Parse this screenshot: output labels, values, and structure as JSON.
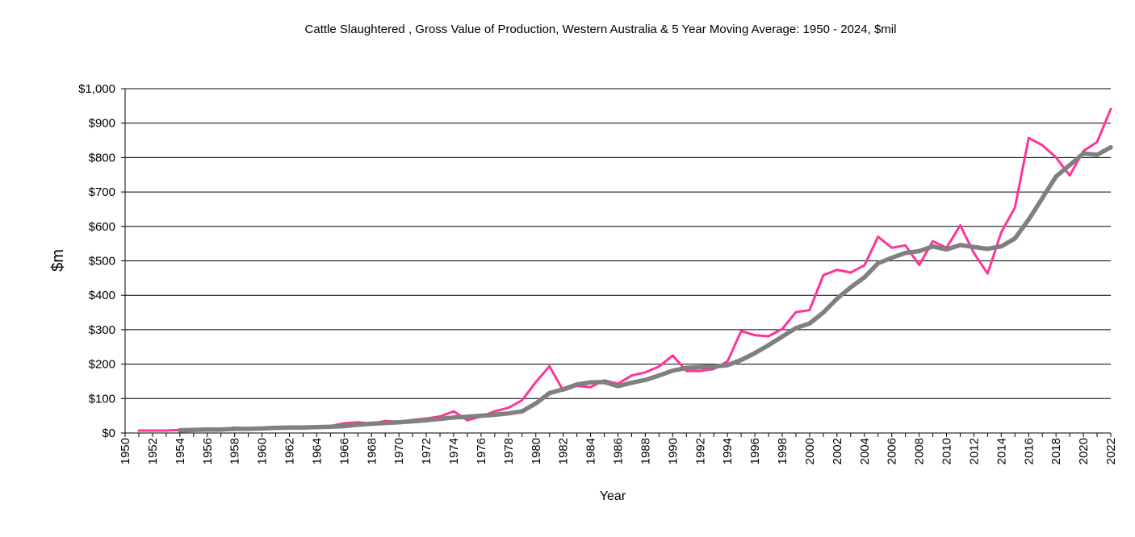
{
  "chart_data": {
    "type": "line",
    "title": "Cattle Slaughtered , Gross Value of Production,  Western  Australia & 5 Year Moving Average: 1950 - 2024, $mil",
    "xlabel": "Year",
    "ylabel": "$m",
    "ylim": [
      0,
      1000
    ],
    "yticks": [
      0,
      100,
      200,
      300,
      400,
      500,
      600,
      700,
      800,
      900,
      1000
    ],
    "ytick_labels": [
      "$0",
      "$100",
      "$200",
      "$300",
      "$400",
      "$500",
      "$600",
      "$700",
      "$800",
      "$900",
      "$1,000"
    ],
    "xlim": [
      1950,
      2022
    ],
    "xtick_labels": [
      "1950",
      "1952",
      "1954",
      "1956",
      "1958",
      "1960",
      "1962",
      "1964",
      "1966",
      "1968",
      "1970",
      "1972",
      "1974",
      "1976",
      "1978",
      "1980",
      "1982",
      "1984",
      "1986",
      "1988",
      "1990",
      "1992",
      "1994",
      "1996",
      "1998",
      "2000",
      "2002",
      "2004",
      "2006",
      "2008",
      "2010",
      "2012",
      "2014",
      "2016",
      "2018",
      "2020",
      "2022"
    ],
    "grid": true,
    "legend": "none",
    "series": [
      {
        "color": "#ff3399",
        "x": [
          1951,
          1952,
          1953,
          1954,
          1955,
          1956,
          1957,
          1958,
          1959,
          1960,
          1961,
          1962,
          1963,
          1964,
          1965,
          1966,
          1967,
          1968,
          1969,
          1970,
          1971,
          1972,
          1973,
          1974,
          1975,
          1976,
          1977,
          1978,
          1979,
          1980,
          1981,
          1982,
          1983,
          1984,
          1985,
          1986,
          1987,
          1988,
          1989,
          1990,
          1991,
          1992,
          1993,
          1994,
          1995,
          1996,
          1997,
          1998,
          1999,
          2000,
          2001,
          2002,
          2003,
          2004,
          2005,
          2006,
          2007,
          2008,
          2009,
          2010,
          2011,
          2012,
          2013,
          2014,
          2015,
          2016,
          2017,
          2018,
          2019,
          2020,
          2021,
          2022
        ],
        "values": [
          7,
          7,
          7,
          9,
          10,
          10,
          10,
          16,
          12,
          14,
          17,
          17,
          17,
          17,
          20,
          28,
          31,
          27,
          35,
          32,
          38,
          42,
          48,
          63,
          37,
          48,
          63,
          73,
          95,
          148,
          194,
          123,
          137,
          133,
          153,
          143,
          167,
          176,
          193,
          225,
          180,
          180,
          186,
          208,
          296,
          284,
          281,
          302,
          351,
          357,
          458,
          474,
          466,
          487,
          570,
          538,
          545,
          488,
          557,
          538,
          603,
          523,
          463,
          583,
          655,
          857,
          836,
          800,
          748,
          819,
          845,
          941
        ]
      },
      {
        "color": "#808080",
        "x": [
          1954,
          1955,
          1956,
          1957,
          1958,
          1959,
          1960,
          1961,
          1962,
          1963,
          1964,
          1965,
          1966,
          1967,
          1968,
          1969,
          1970,
          1971,
          1972,
          1973,
          1974,
          1975,
          1976,
          1977,
          1978,
          1979,
          1980,
          1981,
          1982,
          1983,
          1984,
          1985,
          1986,
          1987,
          1988,
          1989,
          1990,
          1991,
          1992,
          1993,
          1994,
          1995,
          1996,
          1997,
          1998,
          1999,
          2000,
          2001,
          2002,
          2003,
          2004,
          2005,
          2006,
          2007,
          2008,
          2009,
          2010,
          2011,
          2012,
          2013,
          2014,
          2015,
          2016,
          2017,
          2018,
          2019,
          2020,
          2021,
          2022
        ],
        "values": [
          8,
          9,
          10,
          10,
          12,
          12,
          13,
          15,
          16,
          16,
          17,
          18,
          20,
          24,
          27,
          29,
          31,
          34,
          37,
          41,
          45,
          47,
          50,
          53,
          57,
          63,
          86,
          116,
          127,
          141,
          147,
          148,
          136,
          146,
          154,
          167,
          181,
          189,
          191,
          193,
          197,
          212,
          232,
          255,
          280,
          305,
          318,
          350,
          390,
          423,
          452,
          493,
          509,
          523,
          528,
          542,
          533,
          546,
          540,
          535,
          542,
          565,
          620,
          682,
          745,
          778,
          812,
          808,
          830
        ]
      }
    ]
  }
}
